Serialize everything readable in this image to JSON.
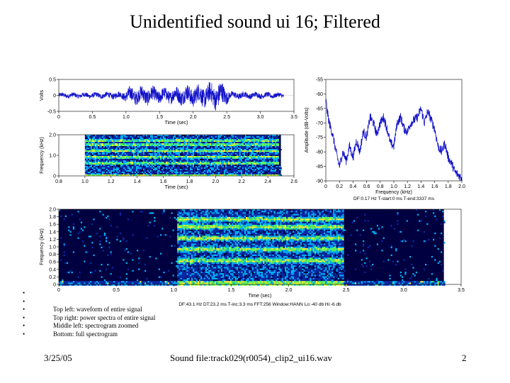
{
  "slide": {
    "title": "Unidentified sound ui 16; Filtered",
    "date": "3/25/05",
    "file_label": "Sound file:track029(r0054)_clip2_ui16.wav",
    "page_number": "2"
  },
  "notes": [
    "",
    "",
    "Top left: waveform of entire signal",
    "Top right: power spectra of entire signal",
    "Middle left: spectrogram zoomed",
    "Bottom: full spectrogram"
  ],
  "colors": {
    "trace": "#1010c8",
    "spectro_bg": "#000040",
    "spectro_low": "#0a2aa8",
    "spectro_mid": "#00b4ff",
    "spectro_high": "#ffff30",
    "spectro_peak": "#60ff60"
  },
  "chart_data": [
    {
      "id": "waveform",
      "type": "line",
      "title": "",
      "xlabel": "Time (sec)",
      "ylabel": "Volts",
      "xlim": [
        0,
        3.5
      ],
      "ylim": [
        -0.5,
        0.5
      ],
      "xticks": [
        "0",
        "0.5",
        "1.0",
        "1.5",
        "2.0",
        "2.5",
        "3.0",
        "3.5"
      ],
      "yticks": [
        "0.5",
        "0",
        "-0.5"
      ],
      "envelope": {
        "x": [
          0,
          0.6,
          0.95,
          1.05,
          1.3,
          1.6,
          1.9,
          2.2,
          2.4,
          2.48,
          2.55,
          2.9,
          3.35
        ],
        "y": [
          0.08,
          0.09,
          0.12,
          0.25,
          0.28,
          0.22,
          0.3,
          0.35,
          0.42,
          0.3,
          0.12,
          0.1,
          0.08
        ]
      }
    },
    {
      "id": "power-spectrum",
      "type": "line",
      "title": "",
      "xlabel": "Frequency (kHz)",
      "ylabel": "Amplitude (dB-Volts)",
      "xlim": [
        0,
        2.0
      ],
      "ylim": [
        -90,
        -55
      ],
      "xticks": [
        "0",
        "0.2",
        "0.4",
        "0.6",
        "0.8",
        "1.0",
        "1.2",
        "1.4",
        "1.6",
        "1.8",
        "2.0"
      ],
      "yticks": [
        "-55",
        "-60",
        "-65",
        "-70",
        "-75",
        "-80",
        "-85",
        "-90"
      ],
      "x": [
        0,
        0.02,
        0.05,
        0.1,
        0.15,
        0.2,
        0.25,
        0.3,
        0.35,
        0.4,
        0.45,
        0.5,
        0.55,
        0.6,
        0.65,
        0.7,
        0.75,
        0.8,
        0.85,
        0.9,
        0.95,
        1.0,
        1.05,
        1.1,
        1.15,
        1.2,
        1.25,
        1.3,
        1.35,
        1.4,
        1.45,
        1.5,
        1.55,
        1.6,
        1.65,
        1.7,
        1.75,
        1.8,
        1.85,
        1.9,
        1.95,
        2.0
      ],
      "y": [
        -62,
        -66,
        -70,
        -74,
        -80,
        -85,
        -80,
        -83,
        -78,
        -82,
        -76,
        -80,
        -73,
        -75,
        -68,
        -70,
        -74,
        -70,
        -68,
        -72,
        -77,
        -78,
        -70,
        -68,
        -72,
        -73,
        -70,
        -69,
        -68,
        -65,
        -70,
        -66,
        -69,
        -72,
        -78,
        -80,
        -77,
        -82,
        -84,
        -87,
        -88,
        -89
      ],
      "note": "DF:0.17 Hz   T-start:0 ms   T-end:3337 ms"
    },
    {
      "id": "spectrogram-zoomed",
      "type": "heatmap",
      "title": "",
      "xlabel": "Time (sec)",
      "ylabel": "Frequency (kHz)",
      "xlim": [
        0.8,
        2.6
      ],
      "ylim": [
        0,
        2.0
      ],
      "xticks": [
        "0.8",
        "1.0",
        "1.2",
        "1.4",
        "1.6",
        "1.8",
        "2.0",
        "2.2",
        "2.4",
        "2.6"
      ],
      "yticks": [
        "2.0",
        "1.0",
        "0"
      ],
      "signal_time": [
        1.0,
        2.48
      ],
      "bands_khz": [
        0.65,
        0.95,
        1.25,
        1.55,
        1.75
      ],
      "data_time": [
        1.0,
        2.5
      ]
    },
    {
      "id": "spectrogram-full",
      "type": "heatmap",
      "title": "",
      "xlabel": "Time (sec)",
      "ylabel": "Frequency (kHz)",
      "xlim": [
        0,
        3.5
      ],
      "ylim": [
        0,
        2.0
      ],
      "xticks": [
        "0",
        "0.5",
        "1.0",
        "1.5",
        "2.0",
        "2.5",
        "3.0",
        "3.5"
      ],
      "yticks": [
        "2.0",
        "1.8",
        "1.6",
        "1.4",
        "1.2",
        "1.0",
        "0.8",
        "0.6",
        "0.4",
        "0.2",
        "0"
      ],
      "signal_time": [
        1.03,
        2.48
      ],
      "bands_khz": [
        0.65,
        0.95,
        1.25,
        1.55,
        1.75
      ],
      "data_time": [
        0,
        3.35
      ],
      "note": "DF:43.1 Hz   DT:23.2 ms   T-inc:3.3 ms   FFT:256   Window:HANN   Lo:-40 db   Hi:-6 db"
    }
  ]
}
